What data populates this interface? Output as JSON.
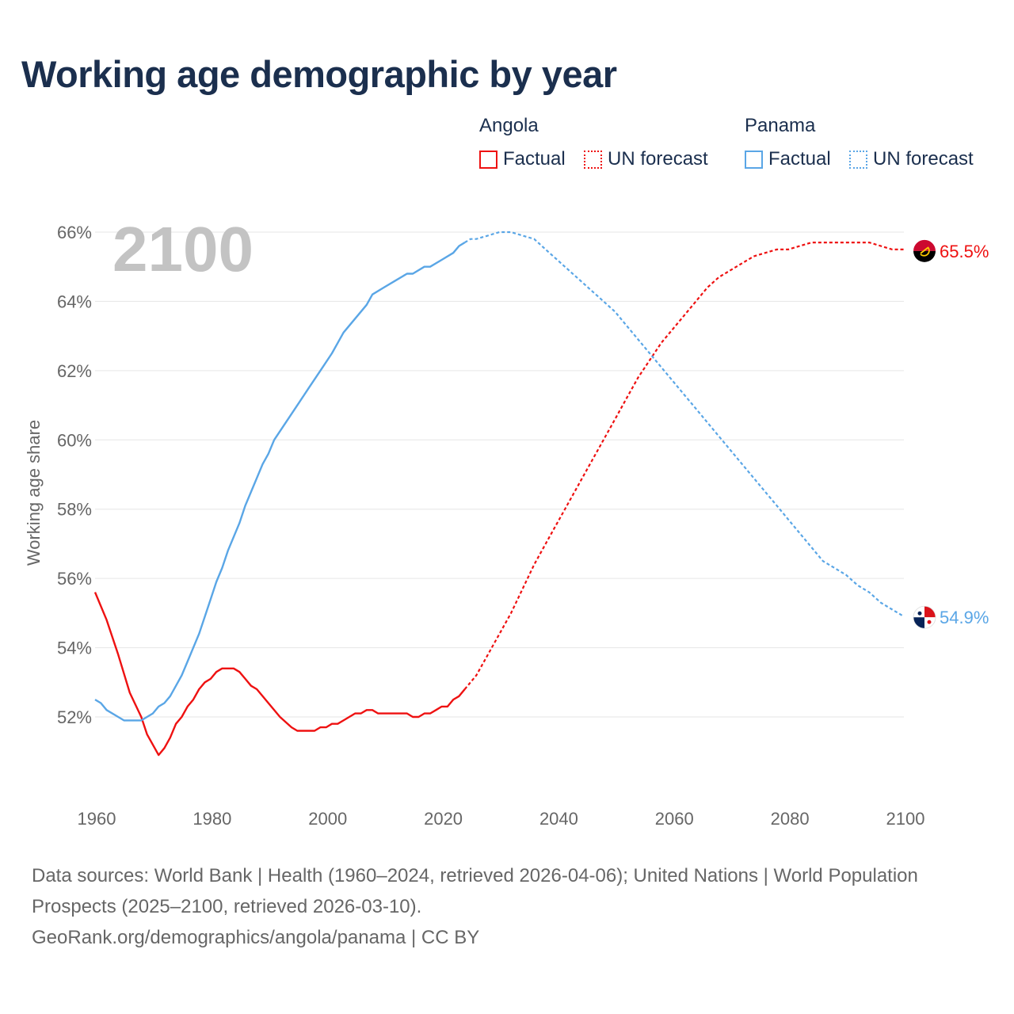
{
  "title": "Working age demographic by year",
  "legend": {
    "groups": [
      {
        "name": "Angola",
        "color": "#ee1111",
        "factual_label": "Factual",
        "forecast_label": "UN forecast"
      },
      {
        "name": "Panama",
        "color": "#5aa6e6",
        "factual_label": "Factual",
        "forecast_label": "UN forecast"
      }
    ]
  },
  "source_lines": [
    "Data sources: World Bank | Health (1960–2024, retrieved 2026-04-06); United Nations | World Population Prospects (2025–2100, retrieved 2026-03-10).",
    "GeoRank.org/demographics/angola/panama | CC BY"
  ],
  "chart_data": {
    "type": "line",
    "title": "Working age demographic by year",
    "xlabel": "",
    "ylabel": "Working age share",
    "current_year_label": "2100",
    "xlim": [
      1960,
      2100
    ],
    "ylim": [
      50,
      66
    ],
    "x_ticks": [
      1960,
      1980,
      2000,
      2020,
      2040,
      2060,
      2080,
      2100
    ],
    "y_ticks": [
      52,
      54,
      56,
      58,
      60,
      62,
      64,
      66
    ],
    "y_tick_labels": [
      "52%",
      "54%",
      "56%",
      "58%",
      "60%",
      "62%",
      "64%",
      "66%"
    ],
    "forecast_start": 2024,
    "series": [
      {
        "name": "Angola",
        "color": "#ee1111",
        "end_label": "65.5%",
        "flag_icon": "angola-flag-icon",
        "points": [
          [
            1960,
            55.6
          ],
          [
            1962,
            54.8
          ],
          [
            1964,
            53.8
          ],
          [
            1966,
            52.7
          ],
          [
            1968,
            52.0
          ],
          [
            1969,
            51.5
          ],
          [
            1971,
            50.9
          ],
          [
            1972,
            51.1
          ],
          [
            1973,
            51.4
          ],
          [
            1974,
            51.8
          ],
          [
            1975,
            52.0
          ],
          [
            1976,
            52.3
          ],
          [
            1977,
            52.5
          ],
          [
            1978,
            52.8
          ],
          [
            1979,
            53.0
          ],
          [
            1980,
            53.1
          ],
          [
            1981,
            53.3
          ],
          [
            1982,
            53.4
          ],
          [
            1983,
            53.4
          ],
          [
            1984,
            53.4
          ],
          [
            1985,
            53.3
          ],
          [
            1986,
            53.1
          ],
          [
            1987,
            52.9
          ],
          [
            1988,
            52.8
          ],
          [
            1990,
            52.4
          ],
          [
            1992,
            52.0
          ],
          [
            1994,
            51.7
          ],
          [
            1995,
            51.6
          ],
          [
            1996,
            51.6
          ],
          [
            1998,
            51.6
          ],
          [
            1999,
            51.7
          ],
          [
            2000,
            51.7
          ],
          [
            2001,
            51.8
          ],
          [
            2002,
            51.8
          ],
          [
            2003,
            51.9
          ],
          [
            2004,
            52.0
          ],
          [
            2005,
            52.1
          ],
          [
            2006,
            52.1
          ],
          [
            2007,
            52.2
          ],
          [
            2008,
            52.2
          ],
          [
            2009,
            52.1
          ],
          [
            2010,
            52.1
          ],
          [
            2013,
            52.1
          ],
          [
            2014,
            52.1
          ],
          [
            2015,
            52.0
          ],
          [
            2016,
            52.0
          ],
          [
            2017,
            52.1
          ],
          [
            2018,
            52.1
          ],
          [
            2019,
            52.2
          ],
          [
            2020,
            52.3
          ],
          [
            2021,
            52.3
          ],
          [
            2022,
            52.5
          ],
          [
            2023,
            52.6
          ],
          [
            2024,
            52.8
          ],
          [
            2026,
            53.2
          ],
          [
            2028,
            53.8
          ],
          [
            2030,
            54.4
          ],
          [
            2032,
            55.0
          ],
          [
            2034,
            55.7
          ],
          [
            2036,
            56.4
          ],
          [
            2038,
            57.0
          ],
          [
            2040,
            57.6
          ],
          [
            2042,
            58.2
          ],
          [
            2044,
            58.8
          ],
          [
            2046,
            59.4
          ],
          [
            2048,
            60.0
          ],
          [
            2050,
            60.6
          ],
          [
            2052,
            61.2
          ],
          [
            2054,
            61.8
          ],
          [
            2056,
            62.3
          ],
          [
            2058,
            62.8
          ],
          [
            2060,
            63.2
          ],
          [
            2062,
            63.6
          ],
          [
            2064,
            64.0
          ],
          [
            2066,
            64.4
          ],
          [
            2068,
            64.7
          ],
          [
            2070,
            64.9
          ],
          [
            2072,
            65.1
          ],
          [
            2074,
            65.3
          ],
          [
            2076,
            65.4
          ],
          [
            2078,
            65.5
          ],
          [
            2080,
            65.5
          ],
          [
            2082,
            65.6
          ],
          [
            2084,
            65.7
          ],
          [
            2086,
            65.7
          ],
          [
            2088,
            65.7
          ],
          [
            2090,
            65.7
          ],
          [
            2092,
            65.7
          ],
          [
            2094,
            65.7
          ],
          [
            2096,
            65.6
          ],
          [
            2098,
            65.5
          ],
          [
            2100,
            65.5
          ]
        ]
      },
      {
        "name": "Panama",
        "color": "#5aa6e6",
        "end_label": "54.9%",
        "flag_icon": "panama-flag-icon",
        "points": [
          [
            1960,
            52.5
          ],
          [
            1961,
            52.4
          ],
          [
            1962,
            52.2
          ],
          [
            1964,
            52.0
          ],
          [
            1965,
            51.9
          ],
          [
            1966,
            51.9
          ],
          [
            1967,
            51.9
          ],
          [
            1968,
            51.9
          ],
          [
            1970,
            52.1
          ],
          [
            1971,
            52.3
          ],
          [
            1972,
            52.4
          ],
          [
            1973,
            52.6
          ],
          [
            1974,
            52.9
          ],
          [
            1975,
            53.2
          ],
          [
            1976,
            53.6
          ],
          [
            1977,
            54.0
          ],
          [
            1978,
            54.4
          ],
          [
            1979,
            54.9
          ],
          [
            1980,
            55.4
          ],
          [
            1981,
            55.9
          ],
          [
            1982,
            56.3
          ],
          [
            1983,
            56.8
          ],
          [
            1984,
            57.2
          ],
          [
            1985,
            57.6
          ],
          [
            1986,
            58.1
          ],
          [
            1987,
            58.5
          ],
          [
            1988,
            58.9
          ],
          [
            1989,
            59.3
          ],
          [
            1990,
            59.6
          ],
          [
            1991,
            60.0
          ],
          [
            1993,
            60.5
          ],
          [
            1995,
            61.0
          ],
          [
            1997,
            61.5
          ],
          [
            1999,
            62.0
          ],
          [
            2001,
            62.5
          ],
          [
            2002,
            62.8
          ],
          [
            2003,
            63.1
          ],
          [
            2005,
            63.5
          ],
          [
            2007,
            63.9
          ],
          [
            2008,
            64.2
          ],
          [
            2010,
            64.4
          ],
          [
            2012,
            64.6
          ],
          [
            2014,
            64.8
          ],
          [
            2015,
            64.8
          ],
          [
            2017,
            65.0
          ],
          [
            2018,
            65.0
          ],
          [
            2020,
            65.2
          ],
          [
            2022,
            65.4
          ],
          [
            2023,
            65.6
          ],
          [
            2024,
            65.7
          ],
          [
            2025,
            65.8
          ],
          [
            2026,
            65.8
          ],
          [
            2028,
            65.9
          ],
          [
            2030,
            66.0
          ],
          [
            2032,
            66.0
          ],
          [
            2034,
            65.9
          ],
          [
            2036,
            65.8
          ],
          [
            2038,
            65.5
          ],
          [
            2040,
            65.2
          ],
          [
            2042,
            64.9
          ],
          [
            2044,
            64.6
          ],
          [
            2046,
            64.3
          ],
          [
            2048,
            64.0
          ],
          [
            2050,
            63.7
          ],
          [
            2052,
            63.3
          ],
          [
            2054,
            62.9
          ],
          [
            2056,
            62.5
          ],
          [
            2058,
            62.1
          ],
          [
            2060,
            61.7
          ],
          [
            2062,
            61.3
          ],
          [
            2064,
            60.9
          ],
          [
            2066,
            60.5
          ],
          [
            2068,
            60.1
          ],
          [
            2070,
            59.7
          ],
          [
            2072,
            59.3
          ],
          [
            2074,
            58.9
          ],
          [
            2076,
            58.5
          ],
          [
            2078,
            58.1
          ],
          [
            2080,
            57.7
          ],
          [
            2082,
            57.3
          ],
          [
            2084,
            56.9
          ],
          [
            2086,
            56.5
          ],
          [
            2088,
            56.3
          ],
          [
            2090,
            56.1
          ],
          [
            2092,
            55.8
          ],
          [
            2094,
            55.6
          ],
          [
            2096,
            55.3
          ],
          [
            2098,
            55.1
          ],
          [
            2100,
            54.9
          ]
        ]
      }
    ]
  }
}
